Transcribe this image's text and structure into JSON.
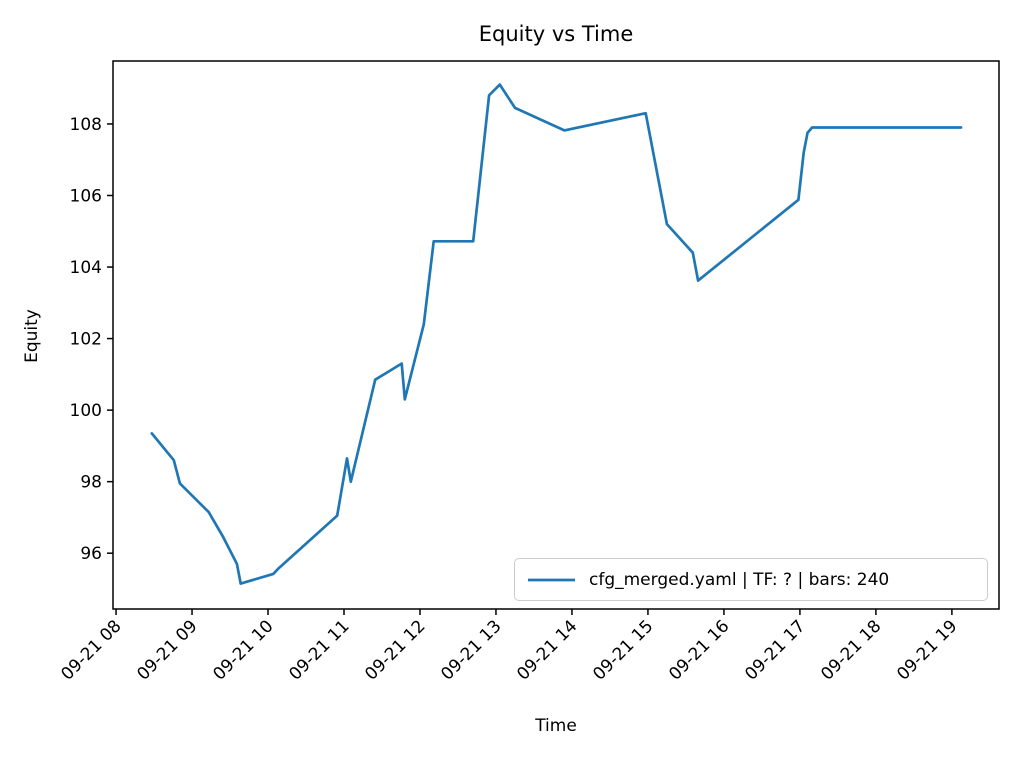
{
  "chart_data": {
    "type": "line",
    "title": "Equity vs Time",
    "xlabel": "Time",
    "ylabel": "Equity",
    "legend_position": "lower right",
    "grid": false,
    "line_color": "#1f77b4",
    "x_unit": "time of day on 09-21, fractional hours",
    "xlim": [
      7.96,
      19.62
    ],
    "ylim": [
      94.44,
      109.76
    ],
    "x_tick_hours": [
      8,
      9,
      10,
      11,
      12,
      13,
      14,
      15,
      16,
      17,
      18,
      19
    ],
    "x_tick_labels": [
      "09-21 08",
      "09-21 09",
      "09-21 10",
      "09-21 11",
      "09-21 12",
      "09-21 13",
      "09-21 14",
      "09-21 15",
      "09-21 16",
      "09-21 17",
      "09-21 18",
      "09-21 19"
    ],
    "y_ticks": [
      96,
      98,
      100,
      102,
      104,
      106,
      108
    ],
    "series": [
      {
        "name": "cfg_merged.yaml | TF: ? | bars: 240",
        "color": "#1f77b4",
        "points": [
          [
            8.47,
            99.35
          ],
          [
            8.76,
            98.6
          ],
          [
            8.84,
            97.95
          ],
          [
            9.22,
            97.15
          ],
          [
            9.41,
            96.45
          ],
          [
            9.59,
            95.7
          ],
          [
            9.64,
            95.15
          ],
          [
            10.07,
            95.42
          ],
          [
            10.14,
            95.58
          ],
          [
            10.91,
            97.05
          ],
          [
            11.04,
            98.65
          ],
          [
            11.09,
            98.0
          ],
          [
            11.41,
            100.85
          ],
          [
            11.72,
            101.25
          ],
          [
            11.76,
            101.3
          ],
          [
            11.8,
            100.3
          ],
          [
            12.05,
            102.4
          ],
          [
            12.18,
            104.72
          ],
          [
            12.7,
            104.72
          ],
          [
            12.91,
            108.8
          ],
          [
            13.05,
            109.1
          ],
          [
            13.25,
            108.45
          ],
          [
            13.9,
            107.82
          ],
          [
            14.97,
            108.3
          ],
          [
            15.25,
            105.2
          ],
          [
            15.59,
            104.4
          ],
          [
            15.66,
            103.62
          ],
          [
            16.98,
            105.88
          ],
          [
            17.05,
            107.2
          ],
          [
            17.1,
            107.75
          ],
          [
            17.16,
            107.9
          ],
          [
            19.12,
            107.9
          ]
        ]
      }
    ]
  }
}
